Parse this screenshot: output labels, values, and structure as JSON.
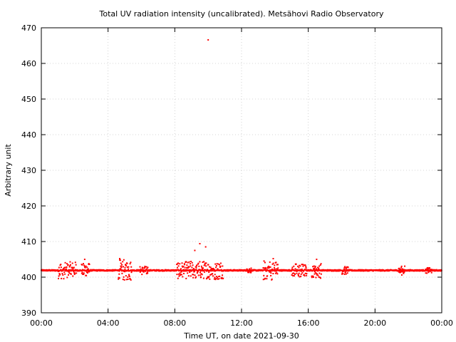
{
  "chart_data": {
    "type": "scatter",
    "title": "Total UV radiation intensity (uncalibrated). Metsähovi Radio Observatory",
    "xlabel": "Time UT, on date 2021-09-30",
    "ylabel": "Arbitrary unit",
    "xlim_hours": [
      0,
      24
    ],
    "ylim": [
      390,
      470
    ],
    "x_ticks": [
      "00:00",
      "04:00",
      "08:00",
      "12:00",
      "16:00",
      "20:00",
      "00:00"
    ],
    "y_ticks": [
      390,
      400,
      410,
      420,
      430,
      440,
      450,
      460,
      470
    ],
    "grid": true,
    "marker_color": "#ff0000",
    "baseline_value": 401.9,
    "outliers": [
      {
        "x_hours": 10.0,
        "y": 466.6
      },
      {
        "x_hours": 9.5,
        "y": 409.4
      },
      {
        "x_hours": 9.85,
        "y": 408.5
      },
      {
        "x_hours": 9.2,
        "y": 407.5
      },
      {
        "x_hours": 2.6,
        "y": 405.0
      },
      {
        "x_hours": 4.7,
        "y": 405.2
      },
      {
        "x_hours": 13.9,
        "y": 405.2
      },
      {
        "x_hours": 16.5,
        "y": 405.0
      }
    ],
    "scatter_bursts": [
      {
        "start_hours": 1.0,
        "end_hours": 2.1,
        "spread": 2.4
      },
      {
        "start_hours": 2.4,
        "end_hours": 2.9,
        "spread": 2.2
      },
      {
        "start_hours": 4.6,
        "end_hours": 5.4,
        "spread": 3.0
      },
      {
        "start_hours": 5.9,
        "end_hours": 6.4,
        "spread": 1.2
      },
      {
        "start_hours": 8.1,
        "end_hours": 10.9,
        "spread": 2.6
      },
      {
        "start_hours": 12.3,
        "end_hours": 12.6,
        "spread": 0.8
      },
      {
        "start_hours": 13.3,
        "end_hours": 14.2,
        "spread": 2.8
      },
      {
        "start_hours": 15.0,
        "end_hours": 15.9,
        "spread": 2.0
      },
      {
        "start_hours": 16.2,
        "end_hours": 16.8,
        "spread": 2.2
      },
      {
        "start_hours": 18.0,
        "end_hours": 18.4,
        "spread": 1.2
      },
      {
        "start_hours": 21.4,
        "end_hours": 21.8,
        "spread": 1.3
      },
      {
        "start_hours": 23.0,
        "end_hours": 23.4,
        "spread": 0.8
      }
    ]
  }
}
